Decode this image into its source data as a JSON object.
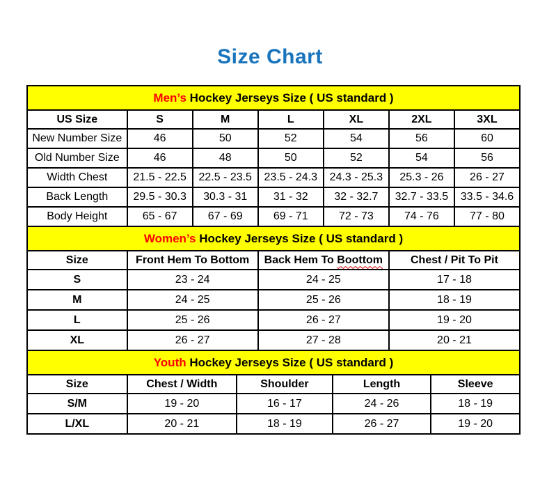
{
  "title": "Size Chart",
  "colors": {
    "title_blue": "#1874BC",
    "banner_yellow": "#FFFF00",
    "accent_red": "#FF0000",
    "border_black": "#000000",
    "squiggle_red": "#D40000"
  },
  "tables": [
    {
      "id": "mens",
      "banner": {
        "highlight": "Men’s",
        "rest": " Hockey Jerseys Size ( US standard )"
      },
      "columns": [
        "US Size",
        "S",
        "M",
        "L",
        "XL",
        "2XL",
        "3XL"
      ],
      "rows": [
        [
          "New Number Size",
          "46",
          "50",
          "52",
          "54",
          "56",
          "60"
        ],
        [
          "Old Number Size",
          "46",
          "48",
          "50",
          "52",
          "54",
          "56"
        ],
        [
          "Width Chest",
          "21.5 - 22.5",
          "22.5 - 23.5",
          "23.5 - 24.3",
          "24.3 - 25.3",
          "25.3 - 26",
          "26 - 27"
        ],
        [
          "Back Length",
          "29.5 - 30.3",
          "30.3 - 31",
          "31 - 32",
          "32 - 32.7",
          "32.7 - 33.5",
          "33.5 - 34.6"
        ],
        [
          "Body Height",
          "65 - 67",
          "67 - 69",
          "69 - 71",
          "72 - 73",
          "74 - 76",
          "77 - 80"
        ]
      ]
    },
    {
      "id": "womens",
      "banner": {
        "highlight": "Women’s",
        "rest": " Hockey Jerseys Size ( US standard )"
      },
      "columns": [
        "Size",
        "Front Hem To Bottom",
        {
          "label": "Back Hem To Boottom",
          "squiggle_word": "Boottom"
        },
        "Chest / Pit To Pit"
      ],
      "rows": [
        [
          "S",
          "23 - 24",
          "24 - 25",
          "17 - 18"
        ],
        [
          "M",
          "24 - 25",
          "25 - 26",
          "18 - 19"
        ],
        [
          "L",
          "25 - 26",
          "26 - 27",
          "19 - 20"
        ],
        [
          "XL",
          "26 - 27",
          "27 - 28",
          "20 - 21"
        ]
      ]
    },
    {
      "id": "youth",
      "banner": {
        "highlight": "Youth",
        "rest": " Hockey Jerseys Size ( US standard )"
      },
      "columns": [
        "Size",
        "Chest / Width",
        "Shoulder",
        "Length",
        "Sleeve"
      ],
      "rows": [
        [
          "S/M",
          "19 - 20",
          "16 - 17",
          "24 - 26",
          "18 - 19"
        ],
        [
          "L/XL",
          "20 - 21",
          "18 - 19",
          "26 - 27",
          "19 - 20"
        ]
      ]
    }
  ]
}
